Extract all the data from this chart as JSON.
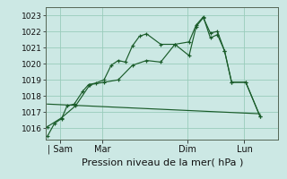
{
  "xlabel": "Pression niveau de la mer( hPa )",
  "bg_color": "#cce8e4",
  "grid_color": "#99ccbb",
  "line_color": "#1a5c2a",
  "ylim": [
    1015.3,
    1023.5
  ],
  "xlim": [
    0.0,
    8.2
  ],
  "yticks": [
    1016,
    1017,
    1018,
    1019,
    1020,
    1021,
    1022,
    1023
  ],
  "xtick_positions": [
    0.5,
    2.0,
    5.0,
    7.0
  ],
  "xtick_labels": [
    "| Sam",
    "Mar",
    "Dim",
    "Lun"
  ],
  "line1_x": [
    0.05,
    0.3,
    0.55,
    0.75,
    1.0,
    1.3,
    1.5,
    1.75,
    2.05,
    2.3,
    2.55,
    2.8,
    3.05,
    3.3,
    3.55,
    4.05,
    4.55,
    5.05,
    5.3,
    5.55,
    5.8,
    6.05,
    6.3,
    6.55,
    7.05,
    7.55
  ],
  "line1_y": [
    1015.5,
    1016.3,
    1016.6,
    1017.4,
    1017.5,
    1018.3,
    1018.7,
    1018.8,
    1019.0,
    1019.9,
    1020.2,
    1020.1,
    1021.1,
    1021.7,
    1021.85,
    1021.2,
    1021.2,
    1020.5,
    1022.3,
    1022.85,
    1021.9,
    1022.0,
    1020.8,
    1018.85,
    1018.85,
    1016.75
  ],
  "line2_x": [
    0.05,
    0.55,
    1.05,
    1.55,
    2.05,
    2.55,
    3.05,
    3.55,
    4.05,
    4.55,
    5.05,
    5.3,
    5.55,
    5.8,
    6.05,
    6.3,
    6.55,
    7.05,
    7.55
  ],
  "line2_y": [
    1016.1,
    1016.65,
    1017.4,
    1018.7,
    1018.85,
    1019.0,
    1019.9,
    1020.2,
    1020.1,
    1021.2,
    1021.35,
    1022.4,
    1022.9,
    1021.6,
    1021.8,
    1020.8,
    1018.85,
    1018.85,
    1016.75
  ],
  "trend_x": [
    0.05,
    7.55
  ],
  "trend_y": [
    1017.5,
    1016.9
  ],
  "figsize": [
    3.2,
    2.0
  ],
  "dpi": 100
}
